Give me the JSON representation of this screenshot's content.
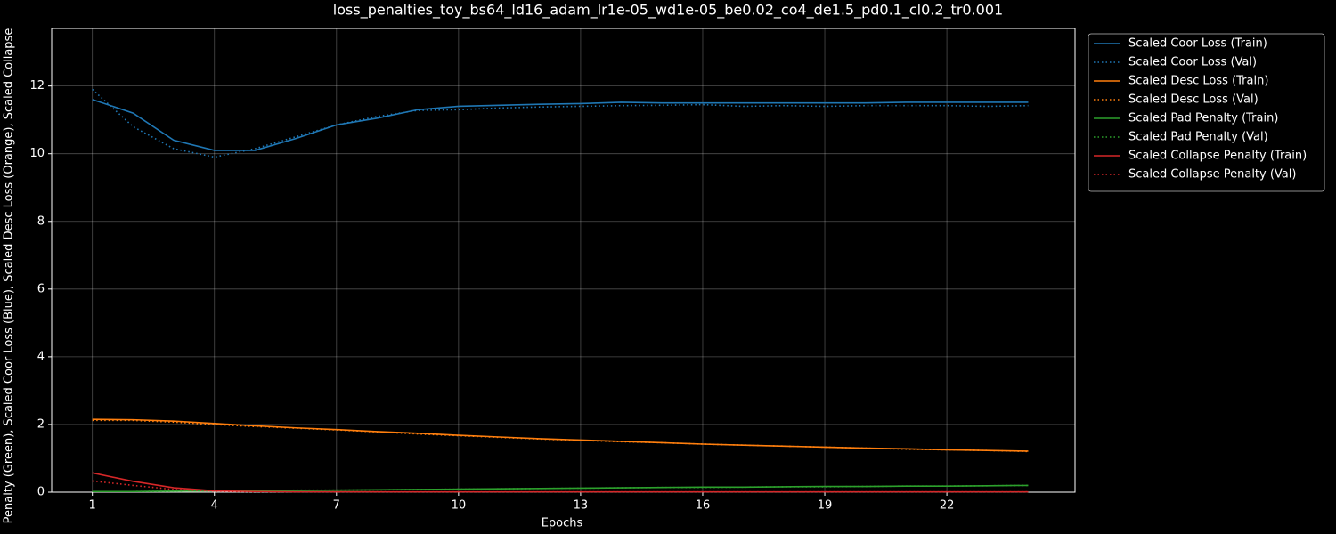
{
  "chart_data": {
    "type": "line",
    "title": "loss_penalties_toy_bs64_ld16_adam_lr1e-05_wd1e-05_be0.02_co4_de1.5_pd0.1_cl0.2_tr0.001",
    "x_label": "Epochs",
    "y_label": "Penalty (Green), Scaled Coor Loss (Blue), Scaled Desc Loss (Orange), Scaled Collapse",
    "x": [
      1,
      2,
      3,
      4,
      5,
      6,
      7,
      8,
      9,
      10,
      11,
      12,
      13,
      14,
      15,
      16,
      17,
      18,
      19,
      20,
      21,
      22,
      23,
      24
    ],
    "xlim": [
      0,
      25.15
    ],
    "xticks": [
      1,
      4,
      7,
      10,
      13,
      16,
      19,
      22
    ],
    "ylim": [
      0,
      13.7
    ],
    "yticks": [
      0,
      2,
      4,
      6,
      8,
      10,
      12
    ],
    "grid": true,
    "legend": "outside upper right",
    "series": [
      {
        "name": "Scaled Coor Loss (Train)",
        "color": "#1f77b4",
        "linestyle": "solid",
        "values": [
          11.6,
          11.2,
          10.4,
          10.1,
          10.1,
          10.45,
          10.85,
          11.05,
          11.3,
          11.4,
          11.43,
          11.46,
          11.48,
          11.52,
          11.5,
          11.5,
          11.5,
          11.5,
          11.5,
          11.5,
          11.52,
          11.52,
          11.52,
          11.52
        ]
      },
      {
        "name": "Scaled Coor Loss (Val)",
        "color": "#1f77b4",
        "linestyle": "dotted",
        "values": [
          11.9,
          10.8,
          10.15,
          9.9,
          10.15,
          10.5,
          10.85,
          11.1,
          11.28,
          11.3,
          11.35,
          11.38,
          11.4,
          11.42,
          11.43,
          11.45,
          11.4,
          11.42,
          11.4,
          11.42,
          11.42,
          11.42,
          11.4,
          11.42
        ]
      },
      {
        "name": "Scaled Desc Loss (Train)",
        "color": "#ff7f0e",
        "linestyle": "solid",
        "values": [
          2.15,
          2.14,
          2.1,
          2.03,
          1.96,
          1.9,
          1.85,
          1.79,
          1.74,
          1.68,
          1.63,
          1.58,
          1.54,
          1.5,
          1.46,
          1.42,
          1.39,
          1.36,
          1.33,
          1.3,
          1.28,
          1.25,
          1.23,
          1.21
        ]
      },
      {
        "name": "Scaled Desc Loss (Val)",
        "color": "#ff7f0e",
        "linestyle": "dotted",
        "values": [
          2.12,
          2.12,
          2.07,
          2.0,
          1.94,
          1.89,
          1.84,
          1.78,
          1.72,
          1.67,
          1.62,
          1.57,
          1.53,
          1.49,
          1.46,
          1.42,
          1.39,
          1.36,
          1.33,
          1.3,
          1.27,
          1.25,
          1.23,
          1.2
        ]
      },
      {
        "name": "Scaled Pad Penalty (Train)",
        "color": "#2ca02c",
        "linestyle": "solid",
        "values": [
          0.02,
          0.02,
          0.03,
          0.04,
          0.05,
          0.05,
          0.06,
          0.07,
          0.08,
          0.09,
          0.1,
          0.11,
          0.12,
          0.13,
          0.14,
          0.15,
          0.15,
          0.16,
          0.17,
          0.17,
          0.18,
          0.18,
          0.19,
          0.2
        ]
      },
      {
        "name": "Scaled Pad Penalty (Val)",
        "color": "#2ca02c",
        "linestyle": "dotted",
        "values": [
          0.02,
          0.02,
          0.03,
          0.04,
          0.05,
          0.06,
          0.06,
          0.07,
          0.08,
          0.09,
          0.1,
          0.11,
          0.12,
          0.13,
          0.14,
          0.14,
          0.15,
          0.16,
          0.16,
          0.17,
          0.18,
          0.18,
          0.19,
          0.2
        ]
      },
      {
        "name": "Scaled Collapse Penalty (Train)",
        "color": "#d62728",
        "linestyle": "solid",
        "values": [
          0.57,
          0.32,
          0.13,
          0.04,
          0.02,
          0.01,
          0.01,
          0.01,
          0.01,
          0.01,
          0.01,
          0.01,
          0.01,
          0.01,
          0.01,
          0.01,
          0.01,
          0.01,
          0.01,
          0.01,
          0.01,
          0.01,
          0.01,
          0.01
        ]
      },
      {
        "name": "Scaled Collapse Penalty (Val)",
        "color": "#d62728",
        "linestyle": "dotted",
        "values": [
          0.33,
          0.2,
          0.08,
          0.03,
          0.01,
          0.01,
          0.01,
          0.01,
          0.01,
          0.01,
          0.01,
          0.01,
          0.01,
          0.01,
          0.01,
          0.01,
          0.01,
          0.01,
          0.01,
          0.01,
          0.01,
          0.01,
          0.01,
          0.01
        ]
      }
    ]
  }
}
